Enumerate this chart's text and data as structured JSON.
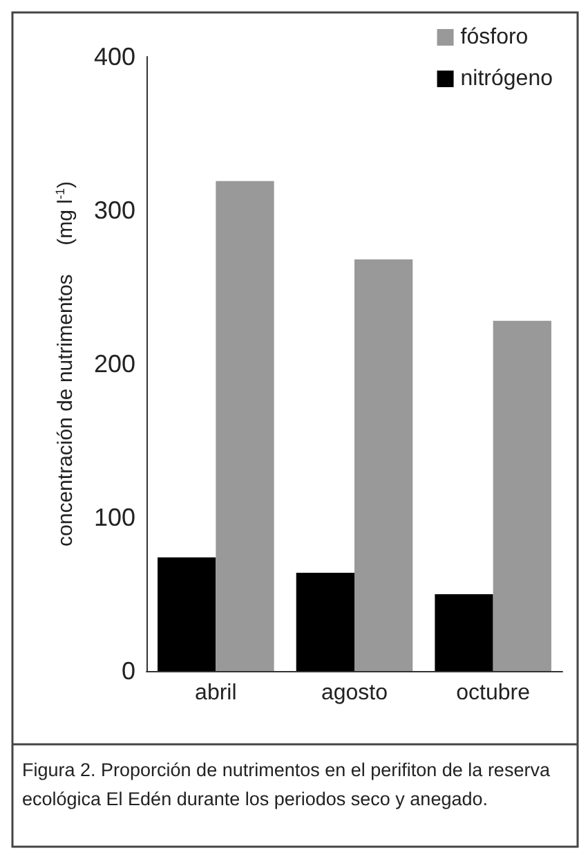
{
  "chart_data": {
    "type": "bar",
    "ylabel": "concentración de nutrimentos     (mg l$^{-1}$)",
    "categories": [
      "abril",
      "agosto",
      "octubre"
    ],
    "series": [
      {
        "name": "nitrógeno",
        "color": "#000000",
        "values": [
          74,
          64,
          50
        ]
      },
      {
        "name": "fósforo",
        "color": "#999999",
        "values": [
          319,
          268,
          228
        ]
      }
    ],
    "ylim": [
      0,
      400
    ],
    "yticks": [
      0,
      100,
      200,
      300,
      400
    ],
    "grid": false,
    "legend": "top right",
    "annotations": [
      "Figura 2. Proporción de nutrimentos en el perifiton de la reserva ecológica El Edén durante los periodos seco y anegado."
    ]
  }
}
